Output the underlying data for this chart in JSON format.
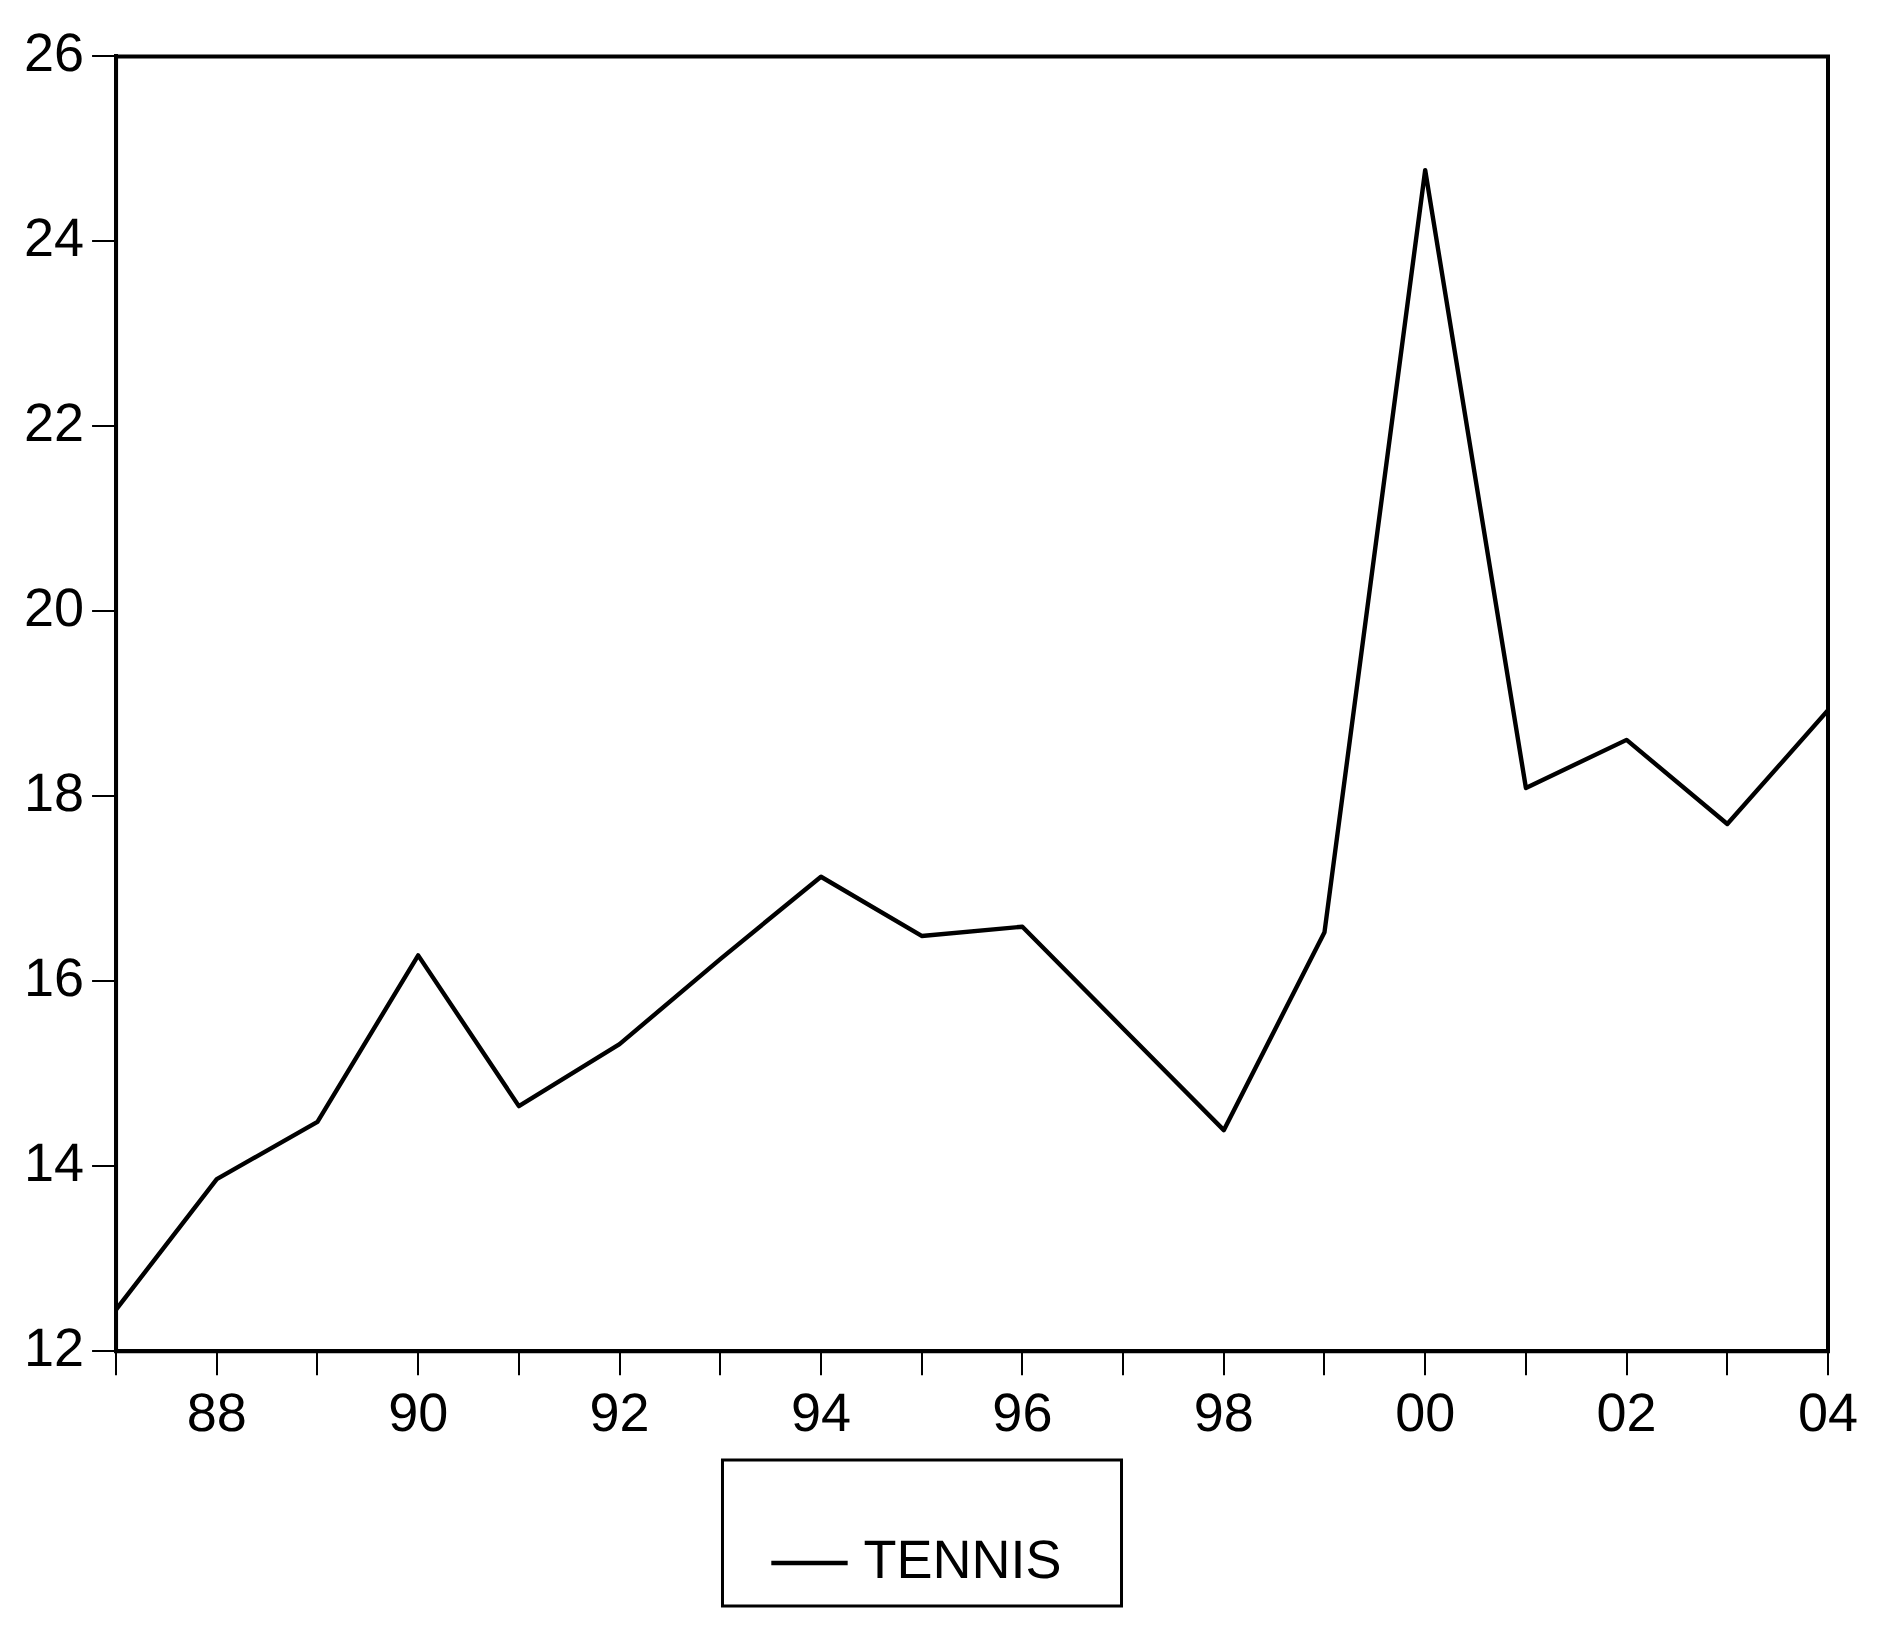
{
  "chart_data": {
    "type": "line",
    "x": [
      1987,
      1988,
      1989,
      1990,
      1991,
      1992,
      1993,
      1994,
      1995,
      1996,
      1997,
      1998,
      1999,
      2000,
      2001,
      2002,
      2003,
      2004
    ],
    "series": [
      {
        "name": "TENNIS",
        "color": "#000000",
        "values": [
          12.45,
          13.86,
          14.48,
          16.28,
          14.65,
          15.32,
          16.24,
          17.13,
          16.49,
          16.59,
          15.49,
          14.39,
          16.53,
          24.77,
          18.09,
          18.61,
          17.7,
          18.93
        ]
      }
    ],
    "xlim": [
      1987,
      2004
    ],
    "xticks": [
      {
        "value": 1987,
        "label": null
      },
      {
        "value": 1988,
        "label": "88"
      },
      {
        "value": 1989,
        "label": null
      },
      {
        "value": 1990,
        "label": "90"
      },
      {
        "value": 1991,
        "label": null
      },
      {
        "value": 1992,
        "label": "92"
      },
      {
        "value": 1993,
        "label": null
      },
      {
        "value": 1994,
        "label": "94"
      },
      {
        "value": 1995,
        "label": null
      },
      {
        "value": 1996,
        "label": "96"
      },
      {
        "value": 1997,
        "label": null
      },
      {
        "value": 1998,
        "label": "98"
      },
      {
        "value": 1999,
        "label": null
      },
      {
        "value": 2000,
        "label": "00"
      },
      {
        "value": 2001,
        "label": null
      },
      {
        "value": 2002,
        "label": "02"
      },
      {
        "value": 2003,
        "label": null
      },
      {
        "value": 2004,
        "label": "04"
      }
    ],
    "ylim": [
      12,
      26
    ],
    "yticks": [
      12,
      14,
      16,
      18,
      20,
      22,
      24,
      26
    ],
    "legend": "bottom",
    "grid": false,
    "marker": "none",
    "line_style": "solid"
  }
}
